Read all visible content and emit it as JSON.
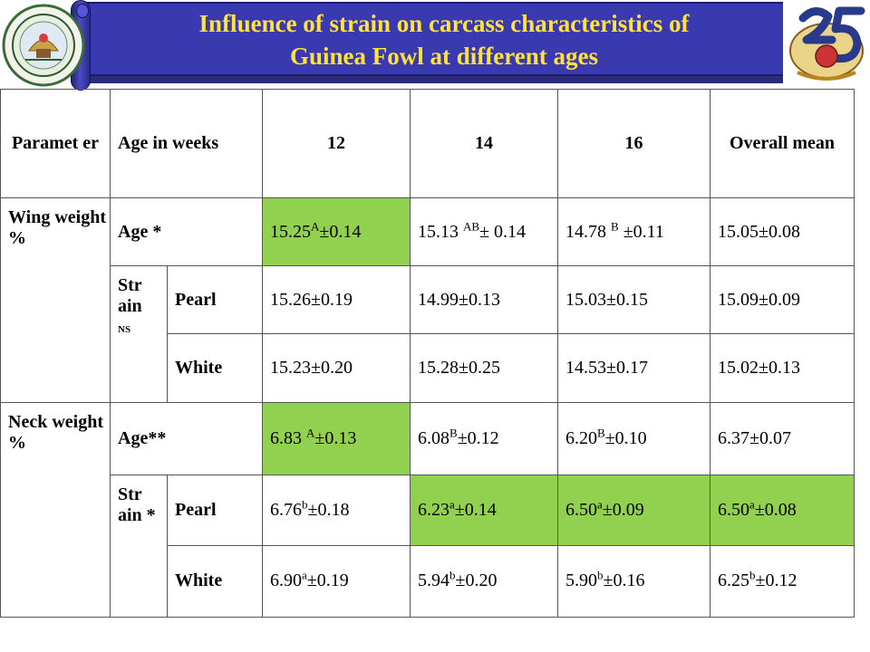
{
  "header": {
    "title_line1": "Influence of strain on carcass characteristics of",
    "title_line2": "Guinea Fowl at different ages",
    "colors": {
      "banner": "#3a3ab0",
      "title": "#ffe23a",
      "highlight": "#92d050"
    },
    "left_logo": "university-emblem",
    "right_logo": "25-anniversary-emblem"
  },
  "table": {
    "headers": {
      "parameter": "Paramet er",
      "age_in_weeks": "Age in weeks",
      "w12": "12",
      "w14": "14",
      "w16": "16",
      "overall": "Overall mean"
    },
    "wing": {
      "label": "Wing weight %",
      "age_label": "Age *",
      "age": {
        "w12": {
          "v": "15.25",
          "s": "A",
          "e": "±0.14"
        },
        "w14": {
          "v": "15.13 ",
          "s": "AB",
          "e": "± 0.14"
        },
        "w16": {
          "v": "14.78 ",
          "s": "B",
          "e": " ±0.11"
        },
        "overall": "15.05±0.08"
      },
      "strain_label": "Str ain",
      "strain_sig": "NS",
      "pearl": {
        "label": "Pearl",
        "w12": "15.26±0.19",
        "w14": "14.99±0.13",
        "w16": "15.03±0.15",
        "overall": "15.09±0.09"
      },
      "white": {
        "label": "White",
        "w12": "15.23±0.20",
        "w14": "15.28±0.25",
        "w16": "14.53±0.17",
        "overall": "15.02±0.13"
      }
    },
    "neck": {
      "label": "Neck weight %",
      "age_label": "Age**",
      "age": {
        "w12": {
          "v": "6.83 ",
          "s": "A",
          "e": "±0.13"
        },
        "w14": {
          "v": "6.08",
          "s": "B",
          "e": "±0.12"
        },
        "w16": {
          "v": "6.20",
          "s": "B",
          "e": "±0.10"
        },
        "overall": "6.37±0.07"
      },
      "strain_label": "Str ain *",
      "pearl": {
        "label": "Pearl",
        "w12": {
          "v": "6.76",
          "s": "b",
          "e": "±0.18"
        },
        "w14": {
          "v": "6.23",
          "s": "a",
          "e": "±0.14"
        },
        "w16": {
          "v": "6.50",
          "s": "a",
          "e": "±0.09"
        },
        "overall": {
          "v": "6.50",
          "s": "a",
          "e": "±0.08"
        }
      },
      "white": {
        "label": "White",
        "w12": {
          "v": "6.90",
          "s": "a",
          "e": "±0.19"
        },
        "w14": {
          "v": "5.94",
          "s": "b",
          "e": "±0.20"
        },
        "w16": {
          "v": "5.90",
          "s": "b",
          "e": "±0.16"
        },
        "overall": {
          "v": "6.25",
          "s": "b",
          "e": "±0.12"
        }
      }
    }
  }
}
